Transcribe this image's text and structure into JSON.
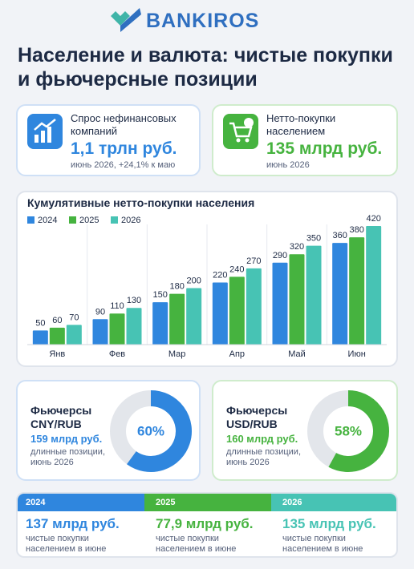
{
  "header": {
    "brand": "BANKIROS",
    "title": "Население и валюта: чистые покупки и фьючерсные позиции"
  },
  "cards": [
    {
      "label": "Спрос нефинансовых компаний",
      "value": "1,1 трлн руб.",
      "note": "июнь 2026, +24,1% к маю"
    },
    {
      "label": "Нетто-покупки населением",
      "value": "135 млрд руб.",
      "note": "июнь 2026"
    }
  ],
  "chart_data": [
    {
      "type": "bar",
      "title": "Кумулятивные нетто-покупки населения",
      "categories": [
        "Янв",
        "Фев",
        "Мар",
        "Апр",
        "Май",
        "Июн"
      ],
      "series": [
        {
          "name": "2024",
          "color": "#2f86de",
          "values": [
            50,
            90,
            150,
            220,
            290,
            360
          ]
        },
        {
          "name": "2025",
          "color": "#46b33f",
          "values": [
            60,
            110,
            180,
            240,
            320,
            380
          ]
        },
        {
          "name": "2026",
          "color": "#47c3b4",
          "values": [
            70,
            130,
            200,
            270,
            350,
            420
          ]
        }
      ]
    },
    {
      "type": "donut",
      "title": "Фьючерсы CNY/RUB",
      "subtitle": "159 млрд руб.",
      "note": "длинные позиции, июнь 2026",
      "values": [
        60
      ],
      "value_labels": [
        "60%"
      ],
      "color": "#2f86de"
    },
    {
      "type": "donut",
      "title": "Фьючерсы USD/RUB",
      "subtitle": "160 млрд руб.",
      "note": "длинные позиции, июнь 2026",
      "values": [
        58
      ],
      "value_labels": [
        "58%"
      ],
      "color": "#46b33f"
    }
  ],
  "summary": [
    {
      "year": "2024",
      "value": "137 млрд руб.",
      "note": "чистые покупки населением в июне"
    },
    {
      "year": "2025",
      "value": "77,9 млрд руб.",
      "note": "чистые покупки населением в июне"
    },
    {
      "year": "2026",
      "value": "135 млрд руб.",
      "note": "чистые покупки населением в июне"
    }
  ]
}
